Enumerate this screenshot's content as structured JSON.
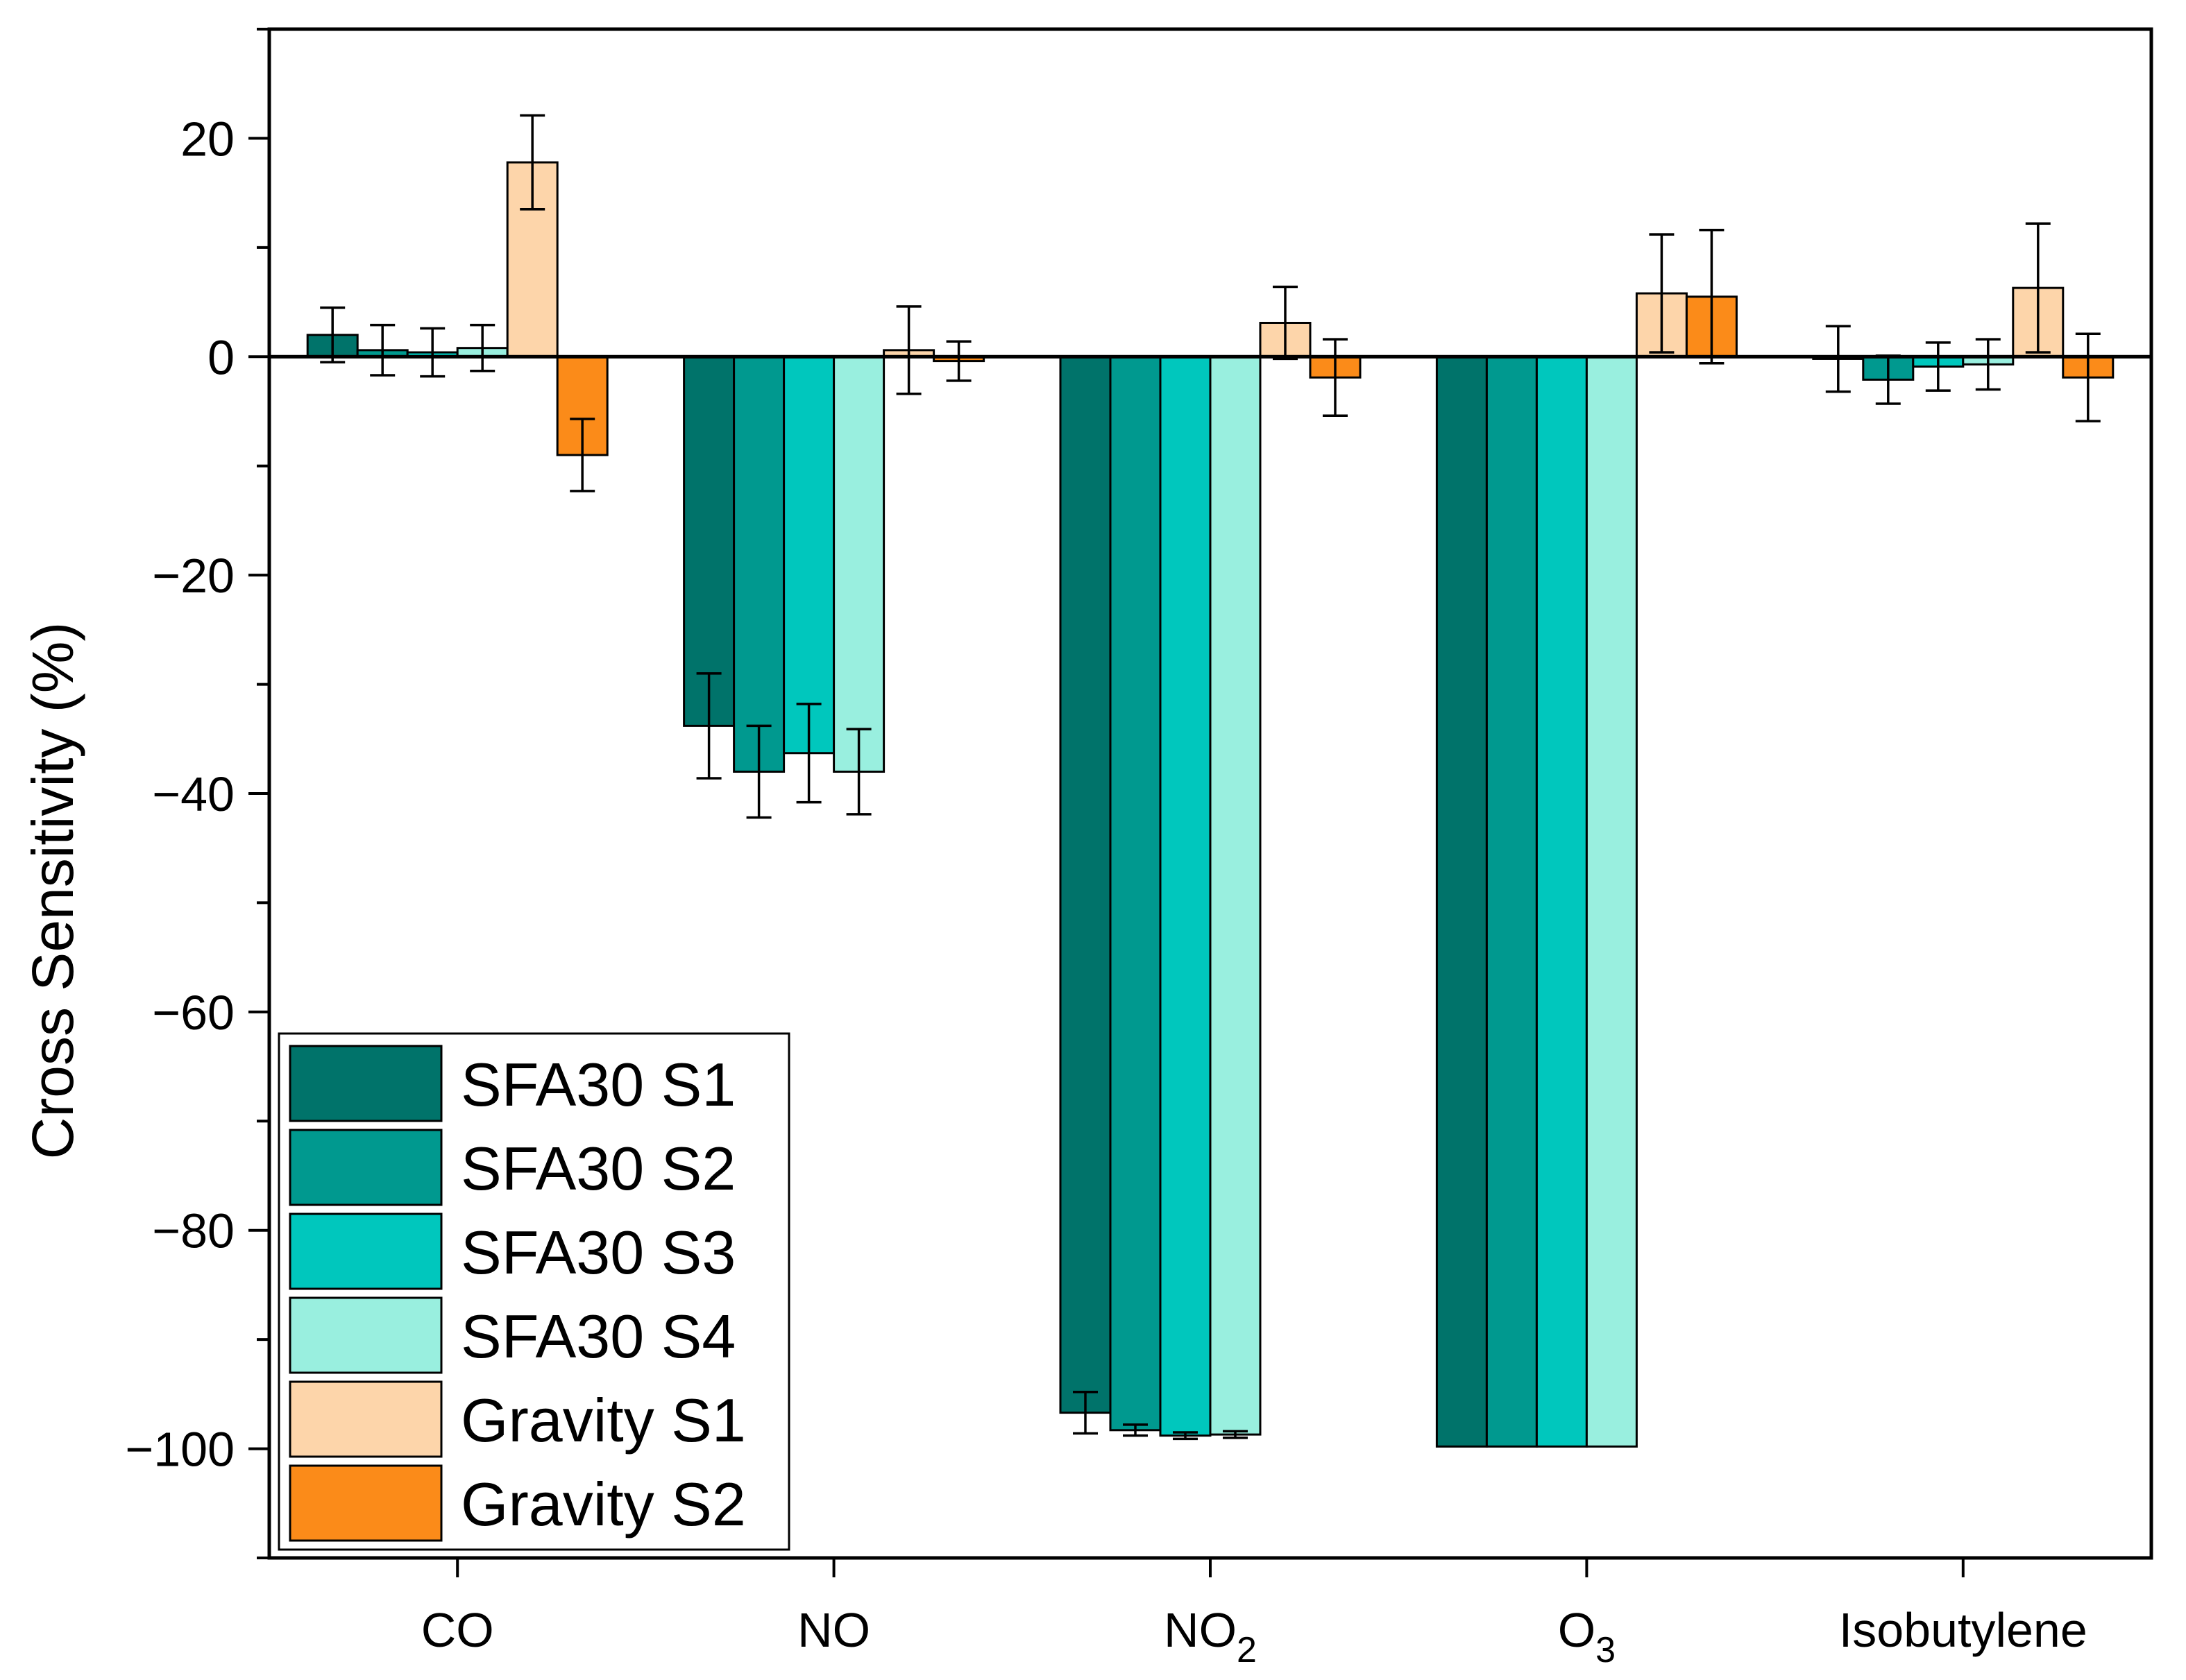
{
  "chart_data": {
    "type": "bar",
    "title": "",
    "xlabel": "",
    "ylabel": "Cross Sensitivity (%)",
    "ylim": [
      -110,
      30
    ],
    "yticks": [
      -100,
      -80,
      -60,
      -40,
      -20,
      0,
      20
    ],
    "ytick_labels": [
      "−100",
      "−80",
      "−60",
      "−40",
      "−20",
      "0",
      "20"
    ],
    "grid": false,
    "legend_position": "bottom-left",
    "categories": [
      {
        "label": "CO",
        "sub": ""
      },
      {
        "label": "NO",
        "sub": ""
      },
      {
        "label": "NO",
        "sub": "2"
      },
      {
        "label": "O",
        "sub": "3"
      },
      {
        "label": "Isobutylene",
        "sub": ""
      }
    ],
    "series": [
      {
        "name": "SFA30 S1",
        "color": "#00736a",
        "values": [
          2.0,
          -33.8,
          -96.7,
          -99.8,
          -0.2
        ],
        "errors": [
          2.5,
          4.8,
          1.9,
          0,
          3.0
        ]
      },
      {
        "name": "SFA30 S2",
        "color": "#00998f",
        "values": [
          0.6,
          -38.0,
          -98.3,
          -99.8,
          -2.1
        ],
        "errors": [
          2.3,
          4.2,
          0.5,
          0,
          2.2
        ]
      },
      {
        "name": "SFA30 S3",
        "color": "#00c7bd",
        "values": [
          0.4,
          -36.3,
          -98.8,
          -99.8,
          -0.9
        ],
        "errors": [
          2.2,
          4.5,
          0.3,
          0,
          2.2
        ]
      },
      {
        "name": "SFA30 S4",
        "color": "#99efdf",
        "values": [
          0.8,
          -38.0,
          -98.7,
          -99.8,
          -0.7
        ],
        "errors": [
          2.1,
          3.9,
          0.3,
          0,
          2.3
        ]
      },
      {
        "name": "Gravity S1",
        "color": "#fdd5aa",
        "values": [
          17.8,
          0.6,
          3.1,
          5.8,
          6.3
        ],
        "errors": [
          4.3,
          4.0,
          3.3,
          5.4,
          5.9
        ]
      },
      {
        "name": "Gravity S2",
        "color": "#fb8b19",
        "values": [
          -9.0,
          -0.4,
          -1.9,
          5.5,
          -1.9
        ],
        "errors": [
          3.3,
          1.8,
          3.5,
          6.1,
          4.0
        ]
      }
    ]
  }
}
